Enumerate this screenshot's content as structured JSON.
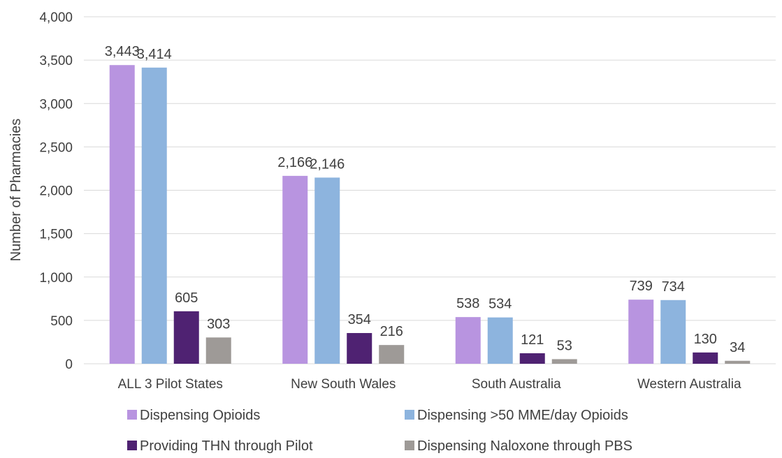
{
  "chart_data": {
    "type": "bar",
    "title": "",
    "xlabel": "",
    "ylabel": "Number of Pharmacies",
    "ylim": [
      0,
      4000
    ],
    "yticks": [
      0,
      500,
      1000,
      1500,
      2000,
      2500,
      3000,
      3500,
      4000
    ],
    "ytick_labels": [
      "0",
      "500",
      "1,000",
      "1,500",
      "2,000",
      "2,500",
      "3,000",
      "3,500",
      "4,000"
    ],
    "grid": true,
    "legend_position": "bottom",
    "categories": [
      "ALL 3 Pilot States",
      "New South Wales",
      "South Australia",
      "Western Australia"
    ],
    "series": [
      {
        "name": "Dispensing Opioids",
        "color": "#b894e0",
        "values": [
          3443,
          2166,
          538,
          739
        ],
        "labels": [
          "3,443",
          "2,166",
          "538",
          "739"
        ]
      },
      {
        "name": "Dispensing >50 MME/day Opioids",
        "color": "#8db4de",
        "values": [
          3414,
          2146,
          534,
          734
        ],
        "labels": [
          "3,414",
          "2,146",
          "534",
          "734"
        ]
      },
      {
        "name": "Providing THN through Pilot",
        "color": "#4f2272",
        "values": [
          605,
          354,
          121,
          130
        ],
        "labels": [
          "605",
          "354",
          "121",
          "130"
        ]
      },
      {
        "name": "Dispensing Naloxone through PBS",
        "color": "#9e9a97",
        "values": [
          303,
          216,
          53,
          34
        ],
        "labels": [
          "303",
          "216",
          "53",
          "34"
        ]
      }
    ]
  }
}
